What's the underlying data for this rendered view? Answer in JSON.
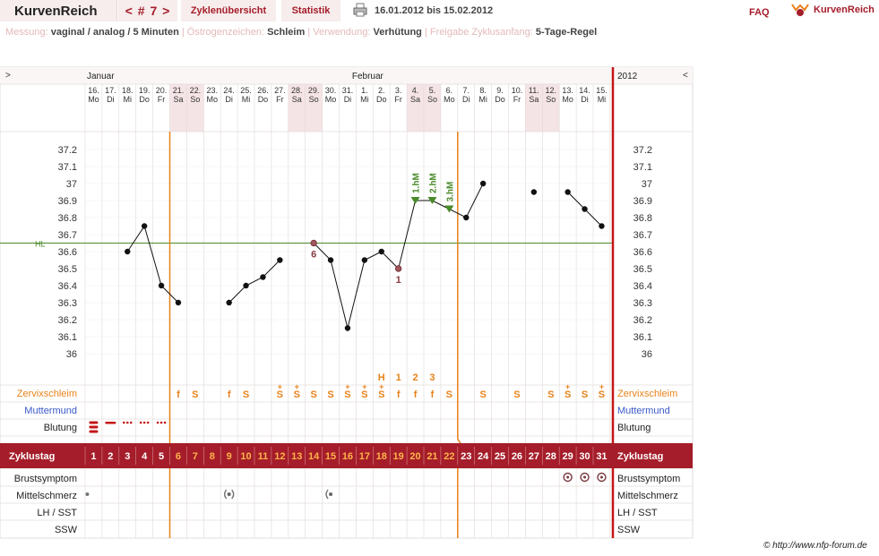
{
  "header": {
    "brand": "KurvenReich",
    "cycle_nav": "< # 7 >",
    "tab_overview": "Zyklenübersicht",
    "tab_stats": "Statistik",
    "date_range": "16.01.2012 bis 15.02.2012",
    "faq": "FAQ",
    "logo_text": "KurvenReich"
  },
  "info": {
    "measure_key": "Messung:",
    "measure_val": "vaginal / analog / 5 Minuten",
    "estrogen_key": "Östrogenzeichen:",
    "estrogen_val": "Schleim",
    "use_key": "Verwendung:",
    "use_val": "Verhütung",
    "release_key": "Freigabe Zyklusanfang:",
    "release_val": "5-Tage-Regel"
  },
  "copyright": "© http://www.nfp-forum.de",
  "colors": {
    "accent": "#a51d2a",
    "orange": "#e8821a",
    "green": "#4a8a2a",
    "weekend": "#f5e4e6",
    "grid": "#e0d8d8",
    "bg": "#fbf6f6"
  },
  "chart_data": {
    "type": "line",
    "title": "",
    "month_labels": [
      {
        "label": "Januar",
        "day_index": 0
      },
      {
        "label": "Februar",
        "day_index": 16
      }
    ],
    "year_label": "2012",
    "nav_left": ">",
    "nav_right": "<",
    "days": [
      {
        "date": "16.",
        "wd": "Mo"
      },
      {
        "date": "17.",
        "wd": "Di"
      },
      {
        "date": "18.",
        "wd": "Mi"
      },
      {
        "date": "19.",
        "wd": "Do"
      },
      {
        "date": "20.",
        "wd": "Fr"
      },
      {
        "date": "21.",
        "wd": "Sa"
      },
      {
        "date": "22.",
        "wd": "So"
      },
      {
        "date": "23.",
        "wd": "Mo"
      },
      {
        "date": "24.",
        "wd": "Di"
      },
      {
        "date": "25.",
        "wd": "Mi"
      },
      {
        "date": "26.",
        "wd": "Do"
      },
      {
        "date": "27.",
        "wd": "Fr"
      },
      {
        "date": "28.",
        "wd": "Sa"
      },
      {
        "date": "29.",
        "wd": "So"
      },
      {
        "date": "30.",
        "wd": "Mo"
      },
      {
        "date": "31.",
        "wd": "Di"
      },
      {
        "date": "1.",
        "wd": "Mi"
      },
      {
        "date": "2.",
        "wd": "Do"
      },
      {
        "date": "3.",
        "wd": "Fr"
      },
      {
        "date": "4.",
        "wd": "Sa"
      },
      {
        "date": "5.",
        "wd": "So"
      },
      {
        "date": "6.",
        "wd": "Mo"
      },
      {
        "date": "7.",
        "wd": "Di"
      },
      {
        "date": "8.",
        "wd": "Mi"
      },
      {
        "date": "9.",
        "wd": "Do"
      },
      {
        "date": "10.",
        "wd": "Fr"
      },
      {
        "date": "11.",
        "wd": "Sa"
      },
      {
        "date": "12.",
        "wd": "So"
      },
      {
        "date": "13.",
        "wd": "Mo"
      },
      {
        "date": "14.",
        "wd": "Di"
      },
      {
        "date": "15.",
        "wd": "Mi"
      }
    ],
    "y_ticks": [
      "37.2",
      "37.1",
      "37",
      "36.9",
      "36.8",
      "36.7",
      "36.6",
      "36.5",
      "36.4",
      "36.3",
      "36.2",
      "36.1",
      "36"
    ],
    "ylim": [
      35.9,
      37.3
    ],
    "temperatures": [
      null,
      null,
      36.6,
      36.75,
      36.4,
      36.3,
      null,
      null,
      36.3,
      36.4,
      36.45,
      36.55,
      null,
      36.65,
      36.55,
      36.15,
      36.55,
      36.6,
      36.5,
      36.9,
      36.9,
      36.85,
      36.8,
      37.0,
      null,
      null,
      36.95,
      null,
      36.95,
      36.85,
      36.75
    ],
    "segment_breaks": [
      5,
      26
    ],
    "hl_label": "HL",
    "hl_value": 36.65,
    "low_labels": [
      {
        "day": 13,
        "text": "6"
      },
      {
        "day": 18,
        "text": "1"
      }
    ],
    "high_labels": [
      {
        "day": 19,
        "text": "1.hM"
      },
      {
        "day": 20,
        "text": "2.hM"
      },
      {
        "day": 21,
        "text": "3.hM"
      }
    ],
    "peak_labels": [
      {
        "day": 17,
        "text": "H"
      },
      {
        "day": 18,
        "text": "1"
      },
      {
        "day": 19,
        "text": "2"
      },
      {
        "day": 20,
        "text": "3"
      }
    ],
    "cycle_vlines": [
      5,
      22
    ],
    "rows": {
      "zervix": "Zervixschleim",
      "muttermund": "Muttermund",
      "blutung": "Blutung",
      "zyklustag": "Zyklustag",
      "brust": "Brustsymptom",
      "mittelschmerz": "Mittelschmerz",
      "lh": "LH / SST",
      "ssw": "SSW"
    },
    "zervix_values": [
      "",
      "",
      "",
      "",
      "",
      "f",
      "S",
      "",
      "f",
      "S",
      "",
      "S+",
      "S+",
      "S",
      "S",
      "S+",
      "S+",
      "S+",
      "f",
      "f",
      "f",
      "S",
      "",
      "S",
      "",
      "S",
      "",
      "S",
      "S+",
      "S",
      "S+"
    ],
    "cycle_days": [
      "1",
      "2",
      "3",
      "4",
      "5",
      "6",
      "7",
      "8",
      "9",
      "10",
      "11",
      "12",
      "13",
      "14",
      "15",
      "16",
      "17",
      "18",
      "19",
      "20",
      "21",
      "22",
      "23",
      "24",
      "25",
      "26",
      "27",
      "28",
      "29",
      "30",
      "31"
    ],
    "brust_days": [
      28,
      29,
      30
    ],
    "mittelschmerz_days": [
      {
        "day": 0,
        "kind": "dot"
      },
      {
        "day": 8,
        "kind": "both"
      },
      {
        "day": 14,
        "kind": "left"
      }
    ],
    "blutung_days": [
      {
        "day": 0,
        "kind": "heavy"
      },
      {
        "day": 1,
        "kind": "line"
      },
      {
        "day": 2,
        "kind": "dots"
      },
      {
        "day": 3,
        "kind": "dots"
      },
      {
        "day": 4,
        "kind": "dots"
      }
    ]
  }
}
